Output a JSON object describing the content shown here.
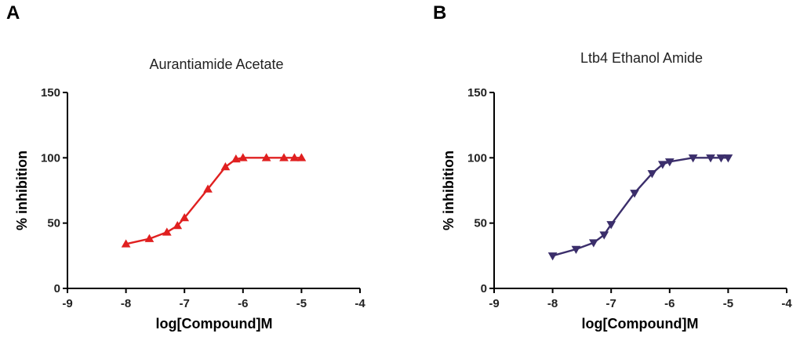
{
  "panels": [
    {
      "letter": "A",
      "chart_data": {
        "type": "line",
        "title": "Aurantiamide Acetate",
        "xlabel": "log[Compound]M",
        "ylabel": "% inhibition",
        "xlim": [
          -9,
          -4
        ],
        "ylim": [
          0,
          150
        ],
        "xticks": [
          -9,
          -8,
          -7,
          -6,
          -5,
          -4
        ],
        "yticks": [
          0,
          50,
          100,
          150
        ],
        "marker": "triangle-up",
        "color": "#e02020",
        "series": [
          {
            "name": "Aurantiamide Acetate",
            "x": [
              -8.0,
              -7.6,
              -7.3,
              -7.12,
              -7.0,
              -6.6,
              -6.3,
              -6.12,
              -6.0,
              -5.6,
              -5.3,
              -5.12,
              -5.0
            ],
            "y": [
              34,
              38,
              43,
              48,
              54,
              76,
              93,
              99,
              100,
              100,
              100,
              100,
              100
            ]
          }
        ]
      }
    },
    {
      "letter": "B",
      "chart_data": {
        "type": "line",
        "title": "Ltb4 Ethanol Amide",
        "xlabel": "log[Compound]M",
        "ylabel": "% inhibition",
        "xlim": [
          -9,
          -4
        ],
        "ylim": [
          0,
          150
        ],
        "xticks": [
          -9,
          -8,
          -7,
          -6,
          -5,
          -4
        ],
        "yticks": [
          0,
          50,
          100,
          150
        ],
        "marker": "triangle-down",
        "color": "#3b2e6b",
        "series": [
          {
            "name": "Ltb4 Ethanol Amide",
            "x": [
              -8.0,
              -7.6,
              -7.3,
              -7.12,
              -7.0,
              -6.6,
              -6.3,
              -6.12,
              -6.0,
              -5.6,
              -5.3,
              -5.12,
              -5.0
            ],
            "y": [
              25,
              30,
              35,
              41,
              49,
              73,
              88,
              95,
              97,
              100,
              100,
              100,
              100
            ]
          }
        ]
      }
    }
  ]
}
